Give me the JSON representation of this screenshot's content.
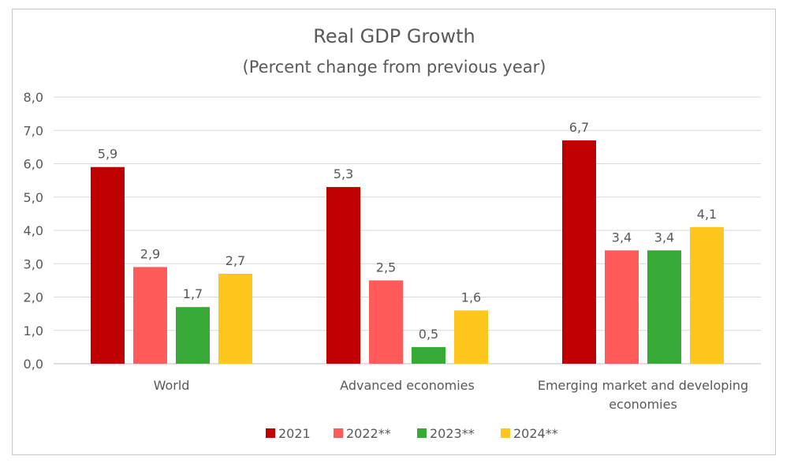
{
  "chart_data": {
    "type": "bar",
    "title": "Real GDP Growth",
    "subtitle": "(Percent change from previous year)",
    "xlabel": "",
    "ylabel": "",
    "categories": [
      "World",
      "Advanced economies",
      "Emerging market and developing economies"
    ],
    "category_lines": [
      [
        "World"
      ],
      [
        "Advanced economies"
      ],
      [
        "Emerging market and developing",
        "economies"
      ]
    ],
    "series": [
      {
        "name": "2021",
        "color": "#C00000",
        "values": [
          5.9,
          5.3,
          6.7
        ],
        "labels": [
          "5,9",
          "5,3",
          "6,7"
        ]
      },
      {
        "name": "2022**",
        "color": "#FF5B5B",
        "values": [
          2.9,
          2.5,
          3.4
        ],
        "labels": [
          "2,9",
          "2,5",
          "3,4"
        ]
      },
      {
        "name": "2023**",
        "color": "#36A936",
        "values": [
          1.7,
          0.5,
          3.4
        ],
        "labels": [
          "1,7",
          "0,5",
          "3,4"
        ]
      },
      {
        "name": "2024**",
        "color": "#FFC61E",
        "values": [
          2.7,
          1.6,
          4.1
        ],
        "labels": [
          "2,7",
          "1,6",
          "4,1"
        ]
      }
    ],
    "ylim": [
      0,
      8
    ],
    "yticks": [
      "0,0",
      "1,0",
      "2,0",
      "3,0",
      "4,0",
      "5,0",
      "6,0",
      "7,0",
      "8,0"
    ],
    "grid": true,
    "legend_position": "bottom"
  }
}
